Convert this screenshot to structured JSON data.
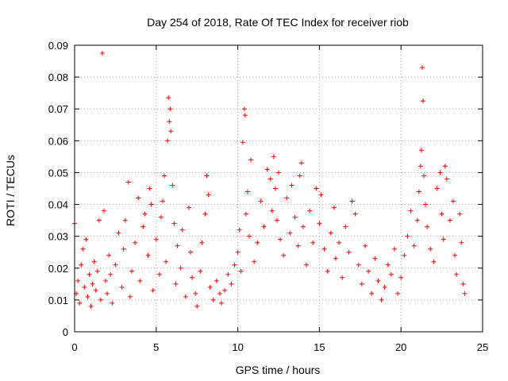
{
  "chart_data": {
    "type": "scatter",
    "title": "Day 254 of 2018, Rate Of TEC Index for receiver riob",
    "xlabel": "GPS time / hours",
    "ylabel": "ROTI / TECUs",
    "xlim": [
      0,
      25
    ],
    "ylim": [
      0,
      0.09
    ],
    "xticks": [
      0,
      5,
      10,
      15,
      20,
      25
    ],
    "xtick_labels": [
      "0",
      "5",
      "10",
      "15",
      "20",
      "25"
    ],
    "yticks": [
      0,
      0.01,
      0.02,
      0.03,
      0.04,
      0.05,
      0.06,
      0.07,
      0.08,
      0.09
    ],
    "ytick_labels": [
      "0",
      "0.01",
      "0.02",
      "0.03",
      "0.04",
      "0.05",
      "0.06",
      "0.07",
      "0.08",
      "0.09"
    ],
    "grid": true,
    "marker": "+",
    "color": "#ff0000",
    "series": [
      {
        "name": "ROTI",
        "points": [
          [
            0.0,
            0.034
          ],
          [
            0.1,
            0.012
          ],
          [
            0.2,
            0.016
          ],
          [
            0.3,
            0.009
          ],
          [
            0.4,
            0.021
          ],
          [
            0.5,
            0.026
          ],
          [
            0.6,
            0.014
          ],
          [
            0.7,
            0.029
          ],
          [
            0.8,
            0.011
          ],
          [
            0.9,
            0.018
          ],
          [
            1.0,
            0.008
          ],
          [
            1.1,
            0.015
          ],
          [
            1.2,
            0.022
          ],
          [
            1.3,
            0.013
          ],
          [
            1.4,
            0.019
          ],
          [
            1.5,
            0.035
          ],
          [
            1.6,
            0.01
          ],
          [
            1.7,
            0.0875
          ],
          [
            1.8,
            0.038
          ],
          [
            1.9,
            0.016
          ],
          [
            2.0,
            0.012
          ],
          [
            2.1,
            0.024
          ],
          [
            2.2,
            0.018
          ],
          [
            2.3,
            0.009
          ],
          [
            2.5,
            0.021
          ],
          [
            2.7,
            0.031
          ],
          [
            2.9,
            0.014
          ],
          [
            3.0,
            0.026
          ],
          [
            3.1,
            0.035
          ],
          [
            3.3,
            0.047
          ],
          [
            3.4,
            0.011
          ],
          [
            3.5,
            0.019
          ],
          [
            3.7,
            0.028
          ],
          [
            3.9,
            0.042
          ],
          [
            4.0,
            0.016
          ],
          [
            4.2,
            0.033
          ],
          [
            4.3,
            0.037
          ],
          [
            4.5,
            0.024
          ],
          [
            4.6,
            0.045
          ],
          [
            4.7,
            0.04
          ],
          [
            4.8,
            0.013
          ],
          [
            5.0,
            0.029
          ],
          [
            5.2,
            0.018
          ],
          [
            5.3,
            0.036
          ],
          [
            5.4,
            0.041
          ],
          [
            5.5,
            0.049
          ],
          [
            5.6,
            0.022
          ],
          [
            5.7,
            0.06
          ],
          [
            5.75,
            0.0735
          ],
          [
            5.8,
            0.066
          ],
          [
            5.85,
            0.07
          ],
          [
            5.9,
            0.063
          ],
          [
            6.0,
            0.046
          ],
          [
            6.1,
            0.034
          ],
          [
            6.2,
            0.015
          ],
          [
            6.3,
            0.027
          ],
          [
            6.5,
            0.02
          ],
          [
            6.6,
            0.032
          ],
          [
            6.8,
            0.011
          ],
          [
            7.0,
            0.039
          ],
          [
            7.1,
            0.025
          ],
          [
            7.2,
            0.017
          ],
          [
            7.4,
            0.012
          ],
          [
            7.5,
            0.008
          ],
          [
            7.7,
            0.019
          ],
          [
            7.8,
            0.028
          ],
          [
            8.0,
            0.037
          ],
          [
            8.1,
            0.049
          ],
          [
            8.2,
            0.043
          ],
          [
            8.3,
            0.014
          ],
          [
            8.5,
            0.01
          ],
          [
            8.7,
            0.016
          ],
          [
            8.9,
            0.012
          ],
          [
            9.0,
            0.009
          ],
          [
            9.2,
            0.013
          ],
          [
            9.4,
            0.018
          ],
          [
            9.6,
            0.015
          ],
          [
            9.8,
            0.021
          ],
          [
            10.0,
            0.025
          ],
          [
            10.1,
            0.032
          ],
          [
            10.2,
            0.019
          ],
          [
            10.3,
            0.0595
          ],
          [
            10.4,
            0.07
          ],
          [
            10.45,
            0.068
          ],
          [
            10.5,
            0.037
          ],
          [
            10.6,
            0.044
          ],
          [
            10.7,
            0.03
          ],
          [
            10.8,
            0.054
          ],
          [
            11.0,
            0.022
          ],
          [
            11.2,
            0.028
          ],
          [
            11.4,
            0.041
          ],
          [
            11.6,
            0.033
          ],
          [
            11.8,
            0.051
          ],
          [
            12.0,
            0.048
          ],
          [
            12.1,
            0.038
          ],
          [
            12.2,
            0.055
          ],
          [
            12.3,
            0.045
          ],
          [
            12.4,
            0.035
          ],
          [
            12.5,
            0.05
          ],
          [
            12.6,
            0.029
          ],
          [
            12.8,
            0.024
          ],
          [
            13.0,
            0.042
          ],
          [
            13.2,
            0.031
          ],
          [
            13.3,
            0.046
          ],
          [
            13.5,
            0.036
          ],
          [
            13.7,
            0.027
          ],
          [
            13.8,
            0.049
          ],
          [
            13.9,
            0.053
          ],
          [
            14.0,
            0.033
          ],
          [
            14.2,
            0.021
          ],
          [
            14.4,
            0.038
          ],
          [
            14.6,
            0.028
          ],
          [
            14.8,
            0.045
          ],
          [
            15.0,
            0.034
          ],
          [
            15.1,
            0.043
          ],
          [
            15.3,
            0.026
          ],
          [
            15.5,
            0.019
          ],
          [
            15.7,
            0.031
          ],
          [
            15.9,
            0.039
          ],
          [
            16.0,
            0.023
          ],
          [
            16.2,
            0.028
          ],
          [
            16.4,
            0.017
          ],
          [
            16.6,
            0.033
          ],
          [
            16.8,
            0.025
          ],
          [
            17.0,
            0.041
          ],
          [
            17.2,
            0.037
          ],
          [
            17.4,
            0.021
          ],
          [
            17.6,
            0.015
          ],
          [
            17.8,
            0.027
          ],
          [
            18.0,
            0.019
          ],
          [
            18.2,
            0.012
          ],
          [
            18.4,
            0.023
          ],
          [
            18.6,
            0.016
          ],
          [
            18.8,
            0.01
          ],
          [
            19.0,
            0.014
          ],
          [
            19.2,
            0.021
          ],
          [
            19.4,
            0.018
          ],
          [
            19.6,
            0.026
          ],
          [
            19.8,
            0.012
          ],
          [
            20.0,
            0.017
          ],
          [
            20.2,
            0.024
          ],
          [
            20.4,
            0.03
          ],
          [
            20.6,
            0.038
          ],
          [
            20.8,
            0.027
          ],
          [
            21.0,
            0.035
          ],
          [
            21.1,
            0.044
          ],
          [
            21.2,
            0.052
          ],
          [
            21.25,
            0.057
          ],
          [
            21.3,
            0.083
          ],
          [
            21.35,
            0.0725
          ],
          [
            21.4,
            0.049
          ],
          [
            21.5,
            0.04
          ],
          [
            21.6,
            0.033
          ],
          [
            21.8,
            0.026
          ],
          [
            22.0,
            0.022
          ],
          [
            22.2,
            0.045
          ],
          [
            22.4,
            0.05
          ],
          [
            22.5,
            0.037
          ],
          [
            22.6,
            0.029
          ],
          [
            22.7,
            0.052
          ],
          [
            22.8,
            0.048
          ],
          [
            23.0,
            0.035
          ],
          [
            23.2,
            0.041
          ],
          [
            23.3,
            0.024
          ],
          [
            23.4,
            0.018
          ],
          [
            23.6,
            0.037
          ],
          [
            23.7,
            0.028
          ],
          [
            23.8,
            0.015
          ],
          [
            23.9,
            0.012
          ]
        ]
      }
    ]
  }
}
